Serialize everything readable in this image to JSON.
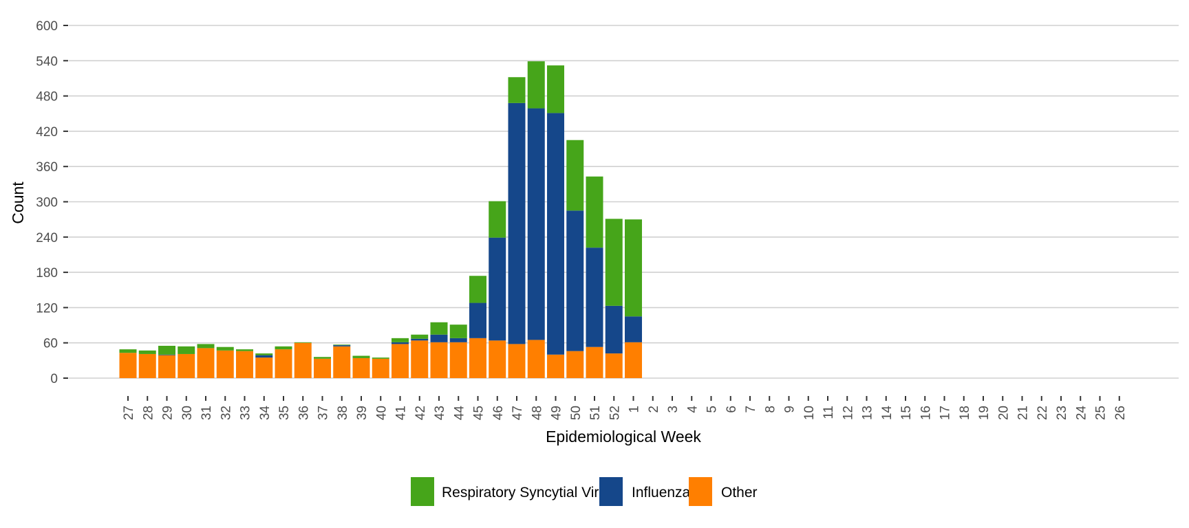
{
  "chart_data": {
    "type": "bar",
    "stacked": true,
    "title": "",
    "xlabel": "Epidemiological Week",
    "ylabel": "Count",
    "ylim": [
      0,
      600
    ],
    "yticks": [
      0,
      60,
      120,
      180,
      240,
      300,
      360,
      420,
      480,
      540,
      600
    ],
    "grid": "horizontal",
    "legend_position": "bottom",
    "categories": [
      "27",
      "28",
      "29",
      "30",
      "31",
      "32",
      "33",
      "34",
      "35",
      "36",
      "37",
      "38",
      "39",
      "40",
      "41",
      "42",
      "43",
      "44",
      "45",
      "46",
      "47",
      "48",
      "49",
      "50",
      "51",
      "52",
      "1",
      "2",
      "3",
      "4",
      "5",
      "6",
      "7",
      "8",
      "9",
      "10",
      "11",
      "12",
      "13",
      "14",
      "15",
      "16",
      "17",
      "18",
      "19",
      "20",
      "21",
      "22",
      "23",
      "24",
      "25",
      "26"
    ],
    "series": [
      {
        "name": "Other",
        "color": "#ff7f00",
        "values": [
          43,
          41,
          39,
          41,
          51,
          47,
          46,
          35,
          49,
          60,
          33,
          54,
          34,
          33,
          58,
          64,
          61,
          61,
          68,
          64,
          58,
          65,
          40,
          46,
          53,
          42,
          61,
          null,
          null,
          null,
          null,
          null,
          null,
          null,
          null,
          null,
          null,
          null,
          null,
          null,
          null,
          null,
          null,
          null,
          null,
          null,
          null,
          null,
          null,
          null,
          null,
          null
        ]
      },
      {
        "name": "Influenza",
        "color": "#15478a",
        "values": [
          0,
          0,
          1,
          0,
          0,
          0,
          0,
          4,
          0,
          0,
          0,
          2,
          0,
          0,
          3,
          3,
          13,
          7,
          60,
          175,
          410,
          394,
          411,
          239,
          169,
          81,
          44,
          null,
          null,
          null,
          null,
          null,
          null,
          null,
          null,
          null,
          null,
          null,
          null,
          null,
          null,
          null,
          null,
          null,
          null,
          null,
          null,
          null,
          null,
          null,
          null,
          null
        ]
      },
      {
        "name": "Respiratory Syncytial Virus",
        "color": "#46a51a",
        "values": [
          6,
          6,
          15,
          13,
          7,
          6,
          3,
          3,
          5,
          1,
          3,
          1,
          4,
          2,
          7,
          7,
          21,
          23,
          46,
          62,
          44,
          80,
          81,
          120,
          121,
          148,
          165,
          null,
          null,
          null,
          null,
          null,
          null,
          null,
          null,
          null,
          null,
          null,
          null,
          null,
          null,
          null,
          null,
          null,
          null,
          null,
          null,
          null,
          null,
          null,
          null,
          null
        ]
      }
    ],
    "legend": [
      {
        "label": "Respiratory Syncytial Virus",
        "color": "#46a51a"
      },
      {
        "label": "Influenza",
        "color": "#15478a"
      },
      {
        "label": "Other",
        "color": "#ff7f00"
      }
    ]
  }
}
